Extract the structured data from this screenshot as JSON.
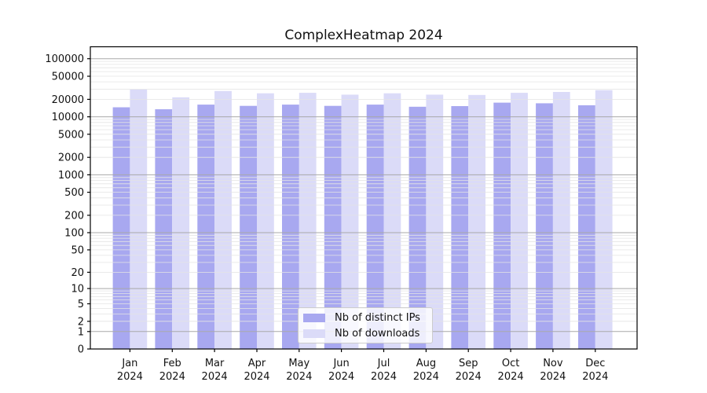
{
  "figure": {
    "background": "#ffffff",
    "axis_color": "#000000",
    "text_color": "#111111"
  },
  "chart_data": {
    "type": "bar",
    "title": "ComplexHeatmap 2024",
    "categories": [
      "Jan 2024",
      "Feb 2024",
      "Mar 2024",
      "Apr 2024",
      "May 2024",
      "Jun 2024",
      "Jul 2024",
      "Aug 2024",
      "Sep 2024",
      "Oct 2024",
      "Nov 2024",
      "Dec 2024"
    ],
    "series": [
      {
        "name": "Nb of distinct IPs",
        "color": "#a8a8f0",
        "values": [
          14600,
          13500,
          16200,
          15400,
          16200,
          15400,
          16200,
          14900,
          15300,
          17500,
          17100,
          15800
        ]
      },
      {
        "name": "Nb of downloads",
        "color": "#dbdbf8",
        "values": [
          29600,
          21700,
          27800,
          25400,
          25900,
          24100,
          25400,
          24100,
          23800,
          25900,
          26800,
          28800
        ]
      }
    ],
    "xlabel": "",
    "ylabel": "",
    "yscale": "log1p",
    "ylim": [
      0,
      160000
    ],
    "yticks": [
      100000,
      50000,
      20000,
      10000,
      5000,
      2000,
      1000,
      500,
      200,
      100,
      50,
      20,
      10,
      5,
      2,
      1,
      0
    ],
    "grid": {
      "on": true,
      "major_color": "#a9a9a9",
      "minor_color": "#e4e4e4"
    },
    "legend": {
      "position": "lower center",
      "items": [
        "Nb of distinct IPs",
        "Nb of downloads"
      ]
    }
  }
}
